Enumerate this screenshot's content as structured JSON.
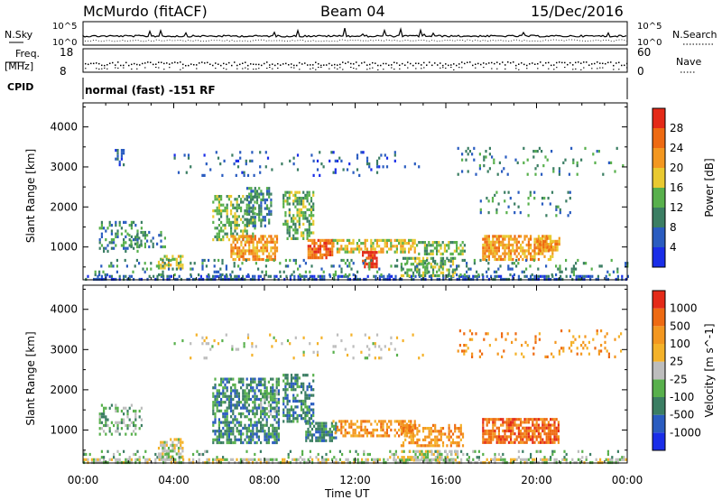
{
  "header": {
    "station": "McMurdo (fitACF)",
    "beam": "Beam 04",
    "date": "15/Dec/2016"
  },
  "side_labels": {
    "nsky": "N.Sky",
    "freq": "Freq.",
    "mhz": "[MHz]",
    "cpid": "CPID",
    "nsearch": "N.Search",
    "nave": "Nave",
    "nsky_top": "10^5",
    "nsky_bot": "10^0",
    "nsearch_top": "10^5",
    "nsearch_bot": "10^0",
    "freq_top": "18",
    "freq_bot": "8",
    "nave_top": "60",
    "nave_bot": "0"
  },
  "cpid_text": "normal (fast) -151 RF",
  "chart_data": [
    {
      "type": "heatmap",
      "title": "",
      "ylabel": "Slant Range [km]",
      "xlabel": "Time UT",
      "ylim": [
        180,
        4600
      ],
      "xlim": [
        "00:00",
        "24:00"
      ],
      "x_ticks": [
        "00:00",
        "04:00",
        "08:00",
        "12:00",
        "16:00",
        "20:00",
        "00:00"
      ],
      "y_ticks": [
        1000,
        2000,
        3000,
        4000
      ],
      "colorbar": {
        "label": "Power [dB]",
        "ticks": [
          "4",
          "8",
          "12",
          "16",
          "20",
          "24",
          "28"
        ],
        "colors": [
          "#1a2ee8",
          "#2a5cc0",
          "#3b7e63",
          "#58b04c",
          "#e9c930",
          "#f39720",
          "#ee6a12",
          "#e42a18"
        ]
      },
      "patches": [
        {
          "t0": 0.0,
          "t1": 24.0,
          "r0": 180,
          "r1": 300,
          "level": 1,
          "density": 0.55
        },
        {
          "t0": 0.7,
          "t1": 2.6,
          "r0": 900,
          "r1": 1650,
          "level": 2,
          "density": 0.35
        },
        {
          "t0": 1.4,
          "t1": 1.8,
          "r0": 3050,
          "r1": 3450,
          "level": 1,
          "density": 0.35
        },
        {
          "t0": 3.3,
          "t1": 4.4,
          "r0": 450,
          "r1": 800,
          "level": 4,
          "density": 0.7
        },
        {
          "t0": 2.0,
          "t1": 3.6,
          "r0": 1000,
          "r1": 1400,
          "level": 2,
          "density": 0.35
        },
        {
          "t0": 5.7,
          "t1": 7.6,
          "r0": 1200,
          "r1": 2300,
          "level": 3,
          "density": 0.5
        },
        {
          "t0": 6.5,
          "t1": 8.6,
          "r0": 700,
          "r1": 1300,
          "level": 5,
          "density": 0.7
        },
        {
          "t0": 7.2,
          "t1": 8.3,
          "r0": 1500,
          "r1": 2500,
          "level": 2,
          "density": 0.45
        },
        {
          "t0": 8.8,
          "t1": 10.2,
          "r0": 1200,
          "r1": 2400,
          "level": 3,
          "density": 0.55
        },
        {
          "t0": 9.9,
          "t1": 11.0,
          "r0": 700,
          "r1": 1200,
          "level": 6,
          "density": 0.8
        },
        {
          "t0": 11.0,
          "t1": 14.6,
          "r0": 850,
          "r1": 1200,
          "level": 4,
          "density": 0.6
        },
        {
          "t0": 12.3,
          "t1": 13.0,
          "r0": 500,
          "r1": 900,
          "level": 7,
          "density": 0.85
        },
        {
          "t0": 14.0,
          "t1": 16.4,
          "r0": 300,
          "r1": 750,
          "level": 3,
          "density": 0.55
        },
        {
          "t0": 14.6,
          "t1": 16.8,
          "r0": 800,
          "r1": 1150,
          "level": 3,
          "density": 0.5
        },
        {
          "t0": 17.6,
          "t1": 20.7,
          "r0": 700,
          "r1": 1300,
          "level": 5,
          "density": 0.7
        },
        {
          "t0": 20.0,
          "t1": 21.0,
          "r0": 900,
          "r1": 1250,
          "level": 5,
          "density": 0.7
        },
        {
          "t0": 17.5,
          "t1": 21.5,
          "r0": 1800,
          "r1": 2400,
          "level": 2,
          "density": 0.12
        },
        {
          "t0": 16.5,
          "t1": 23.8,
          "r0": 2800,
          "r1": 3500,
          "level": 2,
          "density": 0.1
        },
        {
          "t0": 4.0,
          "t1": 15.0,
          "r0": 2800,
          "r1": 3400,
          "level": 1,
          "density": 0.08
        },
        {
          "t0": 0.5,
          "t1": 24.0,
          "r0": 300,
          "r1": 700,
          "level": 2,
          "density": 0.15
        }
      ]
    },
    {
      "type": "heatmap",
      "title": "",
      "ylabel": "Slant Range [km]",
      "xlabel": "Time UT",
      "ylim": [
        180,
        4600
      ],
      "xlim": [
        "00:00",
        "24:00"
      ],
      "x_ticks": [
        "00:00",
        "04:00",
        "08:00",
        "12:00",
        "16:00",
        "20:00",
        "00:00"
      ],
      "y_ticks": [
        1000,
        2000,
        3000,
        4000
      ],
      "colorbar": {
        "label": "Velocity [m s^-1]",
        "ticks": [
          "1000",
          "500",
          "100",
          "25",
          "-25",
          "-100",
          "-500",
          "-1000"
        ],
        "colors": [
          "#1a2ee8",
          "#2a5cc0",
          "#3b7e63",
          "#58b04c",
          "#bdbdbd",
          "#f4b22a",
          "#f39720",
          "#ee6a12",
          "#e42a18"
        ]
      },
      "patches": [
        {
          "t0": 0.0,
          "t1": 24.0,
          "r0": 180,
          "r1": 300,
          "level": 4,
          "density": 0.6
        },
        {
          "t0": 0.0,
          "t1": 24.0,
          "r0": 300,
          "r1": 500,
          "level": 3,
          "density": 0.15
        },
        {
          "t0": 0.7,
          "t1": 2.6,
          "r0": 900,
          "r1": 1650,
          "level": 3,
          "density": 0.35
        },
        {
          "t0": 3.3,
          "t1": 4.4,
          "r0": 300,
          "r1": 800,
          "level": 4,
          "density": 0.6
        },
        {
          "t0": 5.7,
          "t1": 8.6,
          "r0": 700,
          "r1": 2300,
          "level": 2,
          "density": 0.6
        },
        {
          "t0": 8.8,
          "t1": 10.2,
          "r0": 1200,
          "r1": 2400,
          "level": 2,
          "density": 0.55
        },
        {
          "t0": 9.8,
          "t1": 11.2,
          "r0": 700,
          "r1": 1200,
          "level": 2,
          "density": 0.7
        },
        {
          "t0": 11.0,
          "t1": 14.6,
          "r0": 850,
          "r1": 1250,
          "level": 6,
          "density": 0.55
        },
        {
          "t0": 14.0,
          "t1": 16.8,
          "r0": 600,
          "r1": 1150,
          "level": 6,
          "density": 0.5
        },
        {
          "t0": 13.5,
          "t1": 16.5,
          "r0": 250,
          "r1": 500,
          "level": 4,
          "density": 0.5
        },
        {
          "t0": 17.6,
          "t1": 21.0,
          "r0": 700,
          "r1": 1300,
          "level": 7,
          "density": 0.75
        },
        {
          "t0": 16.5,
          "t1": 23.8,
          "r0": 2800,
          "r1": 3500,
          "level": 6,
          "density": 0.1
        },
        {
          "t0": 4.0,
          "t1": 15.0,
          "r0": 2800,
          "r1": 3400,
          "level": 4,
          "density": 0.08
        },
        {
          "t0": 7.8,
          "t1": 8.6,
          "r0": 1300,
          "r1": 2000,
          "level": 3,
          "density": 0.5
        }
      ]
    }
  ]
}
